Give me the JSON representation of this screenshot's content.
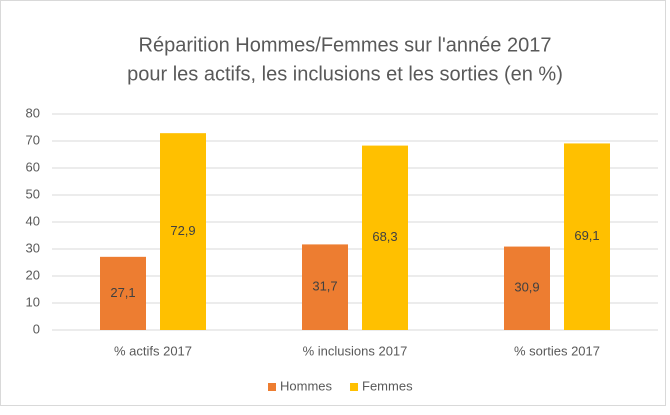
{
  "chart_data": {
    "type": "bar",
    "title": [
      "Réparition Hommes/Femmes sur l'année 2017",
      "pour les actifs, les inclusions et les sorties (en %)"
    ],
    "categories": [
      "% actifs 2017",
      "% inclusions 2017",
      "% sorties 2017"
    ],
    "series": [
      {
        "name": "Hommes",
        "color": "#ed7d31",
        "values": [
          27.1,
          31.7,
          30.9
        ],
        "value_labels": [
          "27,1",
          "31,7",
          "30,9"
        ]
      },
      {
        "name": "Femmes",
        "color": "#ffc000",
        "values": [
          72.9,
          68.3,
          69.1
        ],
        "value_labels": [
          "72,9",
          "68,3",
          "69,1"
        ]
      }
    ],
    "ylim": [
      0,
      80
    ],
    "yticks": [
      0,
      10,
      20,
      30,
      40,
      50,
      60,
      70,
      80
    ],
    "grid": true,
    "legend": "bottom"
  }
}
